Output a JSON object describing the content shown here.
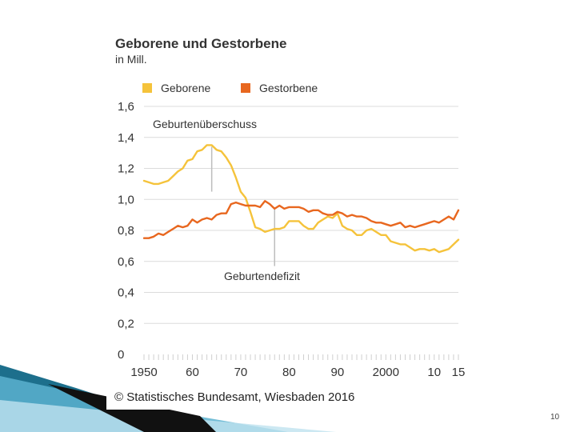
{
  "chart_data": {
    "type": "line",
    "title": "Geborene und Gestorbene",
    "subtitle": "in Mill.",
    "x": [
      1950,
      1951,
      1952,
      1953,
      1954,
      1955,
      1956,
      1957,
      1958,
      1959,
      1960,
      1961,
      1962,
      1963,
      1964,
      1965,
      1966,
      1967,
      1968,
      1969,
      1970,
      1971,
      1972,
      1973,
      1974,
      1975,
      1976,
      1977,
      1978,
      1979,
      1980,
      1981,
      1982,
      1983,
      1984,
      1985,
      1986,
      1987,
      1988,
      1989,
      1990,
      1991,
      1992,
      1993,
      1994,
      1995,
      1996,
      1997,
      1998,
      1999,
      2000,
      2001,
      2002,
      2003,
      2004,
      2005,
      2006,
      2007,
      2008,
      2009,
      2010,
      2011,
      2012,
      2013,
      2014,
      2015
    ],
    "series": [
      {
        "name": "Geborene",
        "color": "#f5c33b",
        "values": [
          1.12,
          1.11,
          1.1,
          1.1,
          1.11,
          1.12,
          1.15,
          1.18,
          1.2,
          1.25,
          1.26,
          1.31,
          1.32,
          1.35,
          1.35,
          1.32,
          1.31,
          1.27,
          1.22,
          1.14,
          1.05,
          1.01,
          0.92,
          0.82,
          0.81,
          0.79,
          0.8,
          0.81,
          0.81,
          0.82,
          0.86,
          0.86,
          0.86,
          0.83,
          0.81,
          0.81,
          0.85,
          0.87,
          0.89,
          0.88,
          0.91,
          0.83,
          0.81,
          0.8,
          0.77,
          0.77,
          0.8,
          0.81,
          0.79,
          0.77,
          0.77,
          0.73,
          0.72,
          0.71,
          0.71,
          0.69,
          0.67,
          0.68,
          0.68,
          0.67,
          0.68,
          0.66,
          0.67,
          0.68,
          0.71,
          0.74
        ]
      },
      {
        "name": "Gestorbene",
        "color": "#e8671f",
        "values": [
          0.75,
          0.75,
          0.76,
          0.78,
          0.77,
          0.79,
          0.81,
          0.83,
          0.82,
          0.83,
          0.87,
          0.85,
          0.87,
          0.88,
          0.87,
          0.9,
          0.91,
          0.91,
          0.97,
          0.98,
          0.97,
          0.96,
          0.96,
          0.96,
          0.95,
          0.99,
          0.97,
          0.94,
          0.96,
          0.94,
          0.95,
          0.95,
          0.95,
          0.94,
          0.92,
          0.93,
          0.93,
          0.91,
          0.9,
          0.9,
          0.92,
          0.91,
          0.89,
          0.9,
          0.89,
          0.89,
          0.88,
          0.86,
          0.85,
          0.85,
          0.84,
          0.83,
          0.84,
          0.85,
          0.82,
          0.83,
          0.82,
          0.83,
          0.84,
          0.85,
          0.86,
          0.85,
          0.87,
          0.89,
          0.87,
          0.93
        ]
      }
    ],
    "ylim": [
      0,
      1.6
    ],
    "y_tick_labels": [
      "0",
      "0,2",
      "0,4",
      "0,6",
      "0,8",
      "1,0",
      "1,2",
      "1,4",
      "1,6"
    ],
    "x_tick_labels": [
      "1950",
      "60",
      "70",
      "80",
      "90",
      "2000",
      "10",
      "15"
    ],
    "legend": {
      "position": "top-left",
      "entries": [
        "Geborene",
        "Gestorbene"
      ]
    },
    "annotations": [
      {
        "text": "Geburtenüberschuss",
        "x": 1964,
        "y_from": 1.05,
        "y_to": 1.34
      },
      {
        "text": "Geburtendefizit",
        "x": 1977,
        "y_from": 0.57,
        "y_to": 0.95
      }
    ],
    "grid": true,
    "source": "© Statistisches Bundesamt, Wiesbaden 2016"
  },
  "page_number": "10"
}
